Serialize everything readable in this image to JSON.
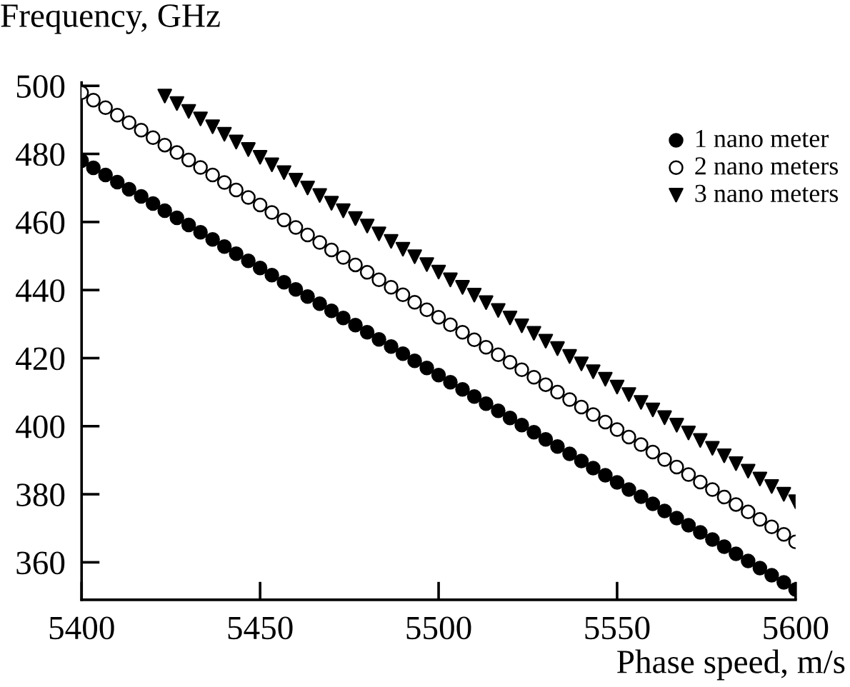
{
  "chart_data": {
    "type": "scatter",
    "xlabel": "Phase speed, m/s",
    "ylabel": "Frequency, GHz",
    "xlim": [
      5400,
      5600
    ],
    "ylim": [
      349,
      501
    ],
    "xticks": [
      5400,
      5450,
      5500,
      5550,
      5600
    ],
    "yticks": [
      360,
      380,
      400,
      420,
      440,
      460,
      480,
      500
    ],
    "grid": false,
    "legend": "top right",
    "x": [
      5400,
      5403.3,
      5406.7,
      5410,
      5413.3,
      5416.7,
      5420,
      5423.3,
      5426.7,
      5430,
      5433.3,
      5436.7,
      5440,
      5443.3,
      5446.7,
      5450,
      5453.3,
      5456.7,
      5460,
      5463.3,
      5466.7,
      5470,
      5473.3,
      5476.7,
      5480,
      5483.3,
      5486.7,
      5490,
      5493.3,
      5496.7,
      5500,
      5503.3,
      5506.7,
      5510,
      5513.3,
      5516.7,
      5520,
      5523.3,
      5526.7,
      5530,
      5533.3,
      5536.7,
      5540,
      5543.3,
      5546.7,
      5550,
      5553.3,
      5556.7,
      5560,
      5563.3,
      5566.7,
      5570,
      5573.3,
      5576.7,
      5580,
      5583.3,
      5586.7,
      5590,
      5593.3,
      5596.7,
      5600
    ],
    "series": [
      {
        "name": "1 nano meter",
        "color": "#000000",
        "marker": "circle",
        "values": [
          478,
          475.9,
          473.8,
          471.7,
          469.6,
          467.5,
          465.4,
          463.3,
          461.2,
          459.1,
          457,
          454.9,
          452.8,
          450.7,
          448.6,
          446.5,
          444.4,
          442.3,
          440.2,
          438.1,
          436,
          433.9,
          431.8,
          429.7,
          427.6,
          425.5,
          423.4,
          421.3,
          419.2,
          417.1,
          415,
          412.9,
          410.8,
          408.7,
          406.6,
          404.5,
          402.4,
          400.3,
          398.2,
          396.1,
          394,
          391.9,
          389.8,
          387.7,
          385.6,
          383.5,
          381.4,
          379.3,
          377.2,
          375.1,
          373,
          370.9,
          368.8,
          366.7,
          364.6,
          362.5,
          360.4,
          358.3,
          356.2,
          354.1,
          352
        ]
      },
      {
        "name": "2 nano meters",
        "color": "#ffffff",
        "marker": "circle",
        "values": [
          498,
          495.8,
          493.6,
          491.4,
          489.2,
          487,
          484.8,
          482.6,
          480.4,
          478.2,
          476,
          473.8,
          471.6,
          469.4,
          467.2,
          465,
          462.8,
          460.6,
          458.4,
          456.2,
          454,
          451.8,
          449.6,
          447.4,
          445.2,
          443,
          440.8,
          438.6,
          436.4,
          434.2,
          432,
          429.8,
          427.6,
          425.4,
          423.2,
          421,
          418.8,
          416.6,
          414.4,
          412.2,
          410,
          407.8,
          405.6,
          403.4,
          401.2,
          399,
          396.8,
          394.6,
          392.4,
          390.2,
          388,
          385.8,
          383.6,
          381.4,
          379.2,
          377,
          374.8,
          372.6,
          370.4,
          368.2,
          366
        ]
      },
      {
        "name": "3 nano meters",
        "color": "#000000",
        "marker": "triangle",
        "x": [
          5423.3,
          5426.7,
          5430,
          5433.3,
          5436.7,
          5440,
          5443.3,
          5446.7,
          5450,
          5453.3,
          5456.7,
          5460,
          5463.3,
          5466.7,
          5470,
          5473.3,
          5476.7,
          5480,
          5483.3,
          5486.7,
          5490,
          5493.3,
          5496.7,
          5500,
          5503.3,
          5506.7,
          5510,
          5513.3,
          5516.7,
          5520,
          5523.3,
          5526.7,
          5530,
          5533.3,
          5536.7,
          5540,
          5543.3,
          5546.7,
          5550,
          5553.3,
          5556.7,
          5560,
          5563.3,
          5566.7,
          5570,
          5573.3,
          5576.7,
          5580,
          5583.3,
          5586.7,
          5590,
          5593.3,
          5596.7,
          5600
        ],
        "values": [
          497,
          494.8,
          492.5,
          490.3,
          488,
          485.8,
          483.5,
          481.3,
          479,
          476.8,
          474.5,
          472.3,
          470,
          467.8,
          465.5,
          463.3,
          461,
          458.8,
          456.5,
          454.3,
          452,
          449.8,
          447.5,
          445.3,
          443,
          440.8,
          438.5,
          436.3,
          434,
          431.8,
          429.5,
          427.3,
          425,
          422.8,
          420.5,
          418.3,
          416,
          413.8,
          411.5,
          409.3,
          407,
          404.8,
          402.5,
          400.3,
          398,
          395.8,
          393.5,
          391.3,
          389,
          386.8,
          384.5,
          382.3,
          380,
          377.8
        ]
      }
    ]
  }
}
